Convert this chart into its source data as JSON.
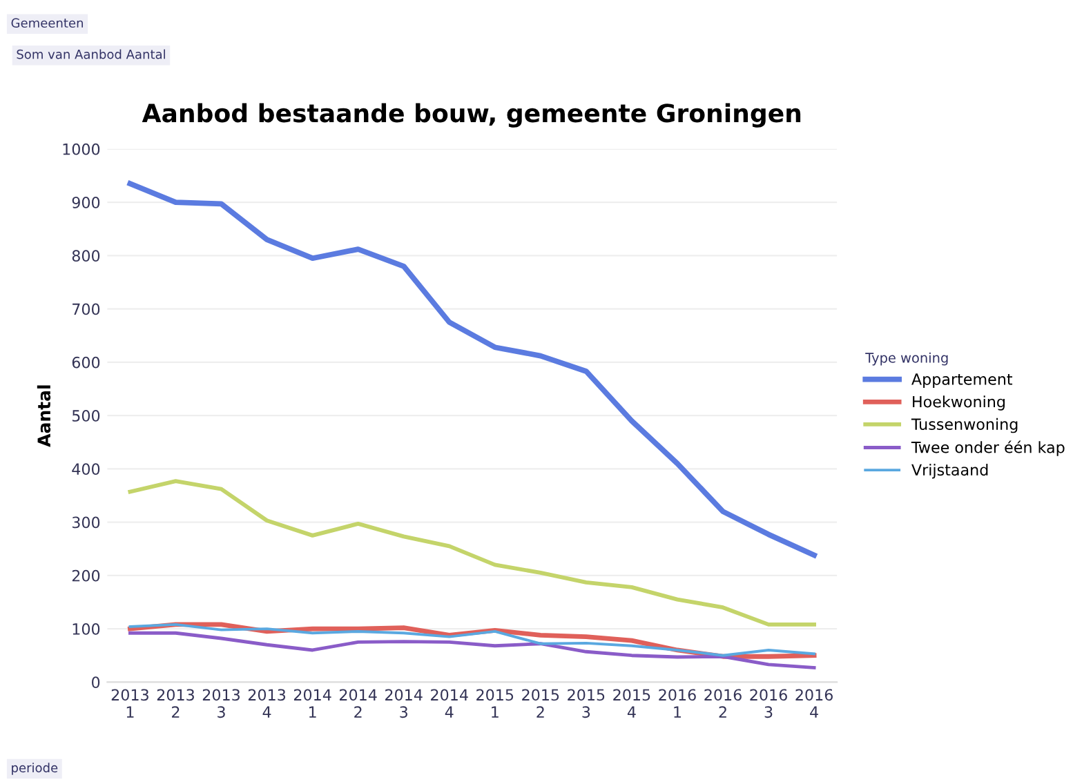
{
  "chart_data": {
    "type": "line",
    "title": "Aanbod bestaande bouw, gemeente Groningen",
    "ylabel": "Aantal",
    "legend_title": "Type woning",
    "annotations": [
      "Gemeenten",
      "Som van Aanbod Aantal",
      "periode"
    ],
    "categories": [
      "2013\n1",
      "2013\n2",
      "2013\n3",
      "2013\n4",
      "2014\n1",
      "2014\n2",
      "2014\n3",
      "2014\n4",
      "2015\n1",
      "2015\n2",
      "2015\n3",
      "2015\n4",
      "2016\n1",
      "2016\n2",
      "2016\n3",
      "2016\n4"
    ],
    "series": [
      {
        "name": "Appartement",
        "color": "#5b7be0",
        "values": [
          935,
          900,
          897,
          830,
          795,
          812,
          780,
          675,
          628,
          612,
          583,
          490,
          410,
          320,
          277,
          238
        ]
      },
      {
        "name": "Hoekwoning",
        "color": "#e0605a",
        "values": [
          100,
          108,
          108,
          95,
          100,
          100,
          102,
          88,
          97,
          88,
          85,
          78,
          60,
          48,
          48,
          50
        ]
      },
      {
        "name": "Tussenwoning",
        "color": "#c4d46a",
        "values": [
          357,
          377,
          362,
          303,
          275,
          297,
          273,
          255,
          220,
          205,
          187,
          178,
          155,
          140,
          108,
          108
        ]
      },
      {
        "name": "Twee onder één kap",
        "color": "#8a5cc8",
        "values": [
          92,
          92,
          82,
          70,
          60,
          75,
          76,
          75,
          68,
          72,
          57,
          50,
          47,
          48,
          33,
          27
        ]
      },
      {
        "name": "Vrijstaand",
        "color": "#5aa8e0",
        "values": [
          104,
          108,
          98,
          100,
          92,
          95,
          92,
          85,
          95,
          72,
          73,
          68,
          60,
          50,
          60,
          53
        ]
      }
    ],
    "ylim": [
      0,
      1000
    ],
    "yticks": [
      0,
      100,
      200,
      300,
      400,
      500,
      600,
      700,
      800,
      900,
      1000
    ],
    "grid": "y",
    "legend": "right",
    "marker": "none",
    "line_style": "solid"
  }
}
